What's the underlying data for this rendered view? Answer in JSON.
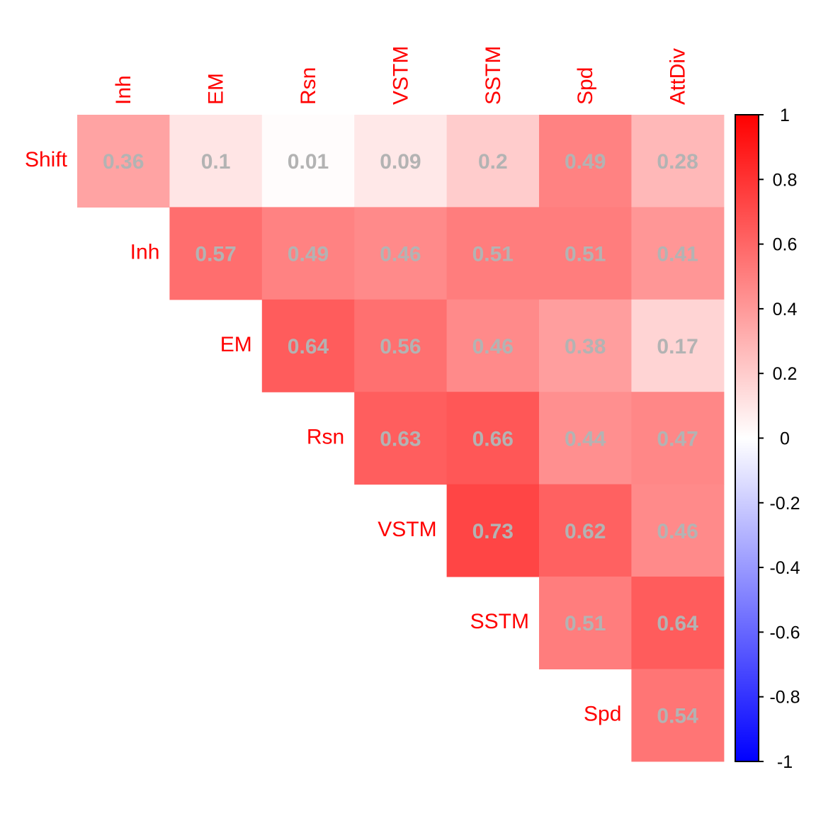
{
  "chart_data": {
    "type": "heatmap",
    "title": "",
    "xlabel": "",
    "ylabel": "",
    "row_labels": [
      "Shift",
      "Inh",
      "EM",
      "Rsn",
      "VSTM",
      "SSTM",
      "Spd"
    ],
    "col_labels": [
      "Inh",
      "EM",
      "Rsn",
      "VSTM",
      "SSTM",
      "Spd",
      "AttDiv"
    ],
    "matrix": [
      [
        0.36,
        0.1,
        0.01,
        0.09,
        0.2,
        0.49,
        0.28
      ],
      [
        null,
        0.57,
        0.49,
        0.46,
        0.51,
        0.51,
        0.41
      ],
      [
        null,
        null,
        0.64,
        0.56,
        0.46,
        0.38,
        0.17
      ],
      [
        null,
        null,
        null,
        0.63,
        0.66,
        0.44,
        0.47
      ],
      [
        null,
        null,
        null,
        null,
        0.73,
        0.62,
        0.46
      ],
      [
        null,
        null,
        null,
        null,
        null,
        0.51,
        0.64
      ],
      [
        null,
        null,
        null,
        null,
        null,
        null,
        0.54
      ]
    ],
    "value_range": [
      -1,
      1
    ],
    "colorscale": [
      "#0000ff",
      "#ffffff",
      "#ff0000"
    ],
    "colorbar_ticks": [
      "1",
      "0.8",
      "0.6",
      "0.4",
      "0.2",
      "0",
      "-0.2",
      "-0.4",
      "-0.6",
      "-0.8",
      "-1"
    ],
    "colorbar_tick_values": [
      1,
      0.8,
      0.6,
      0.4,
      0.2,
      0,
      -0.2,
      -0.4,
      -0.6,
      -0.8,
      -1
    ],
    "label_color": "#ff0000",
    "value_text_color": "#b3b3b3",
    "legend_position": "right",
    "grid": false
  }
}
